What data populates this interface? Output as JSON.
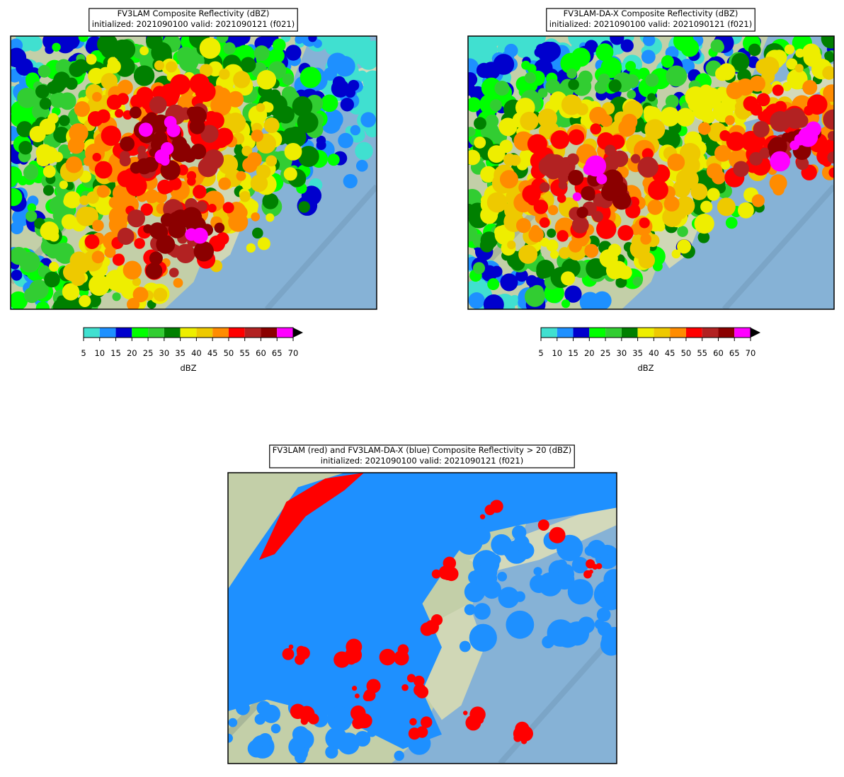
{
  "panels": [
    {
      "title": "FV3LAM Composite Reflectivity (dBZ)",
      "subtitle": "initialized: 2021090100 valid: 2021090121 (f021)",
      "colorbar": {
        "label": "dBZ",
        "ticks": [
          5,
          10,
          15,
          20,
          25,
          30,
          35,
          40,
          45,
          50,
          55,
          60,
          65,
          70
        ],
        "colors": [
          "#40e0d0",
          "#1e90ff",
          "#0000cd",
          "#00ff00",
          "#32cd32",
          "#008000",
          "#eeee00",
          "#eec900",
          "#ff8c00",
          "#ff0000",
          "#b22222",
          "#8b0000",
          "#ff00ff"
        ],
        "extend_color": "#000000"
      }
    },
    {
      "title": "FV3LAM-DA-X Composite Reflectivity (dBZ)",
      "subtitle": "initialized: 2021090100 valid: 2021090121 (f021)",
      "colorbar": {
        "label": "dBZ",
        "ticks": [
          5,
          10,
          15,
          20,
          25,
          30,
          35,
          40,
          45,
          50,
          55,
          60,
          65,
          70
        ],
        "colors": [
          "#40e0d0",
          "#1e90ff",
          "#0000cd",
          "#00ff00",
          "#32cd32",
          "#008000",
          "#eeee00",
          "#eec900",
          "#ff8c00",
          "#ff0000",
          "#b22222",
          "#8b0000",
          "#ff00ff"
        ],
        "extend_color": "#000000"
      }
    },
    {
      "title": "FV3LAM (red) and FV3LAM-DA-X (blue) Composite Reflectivity > 20 (dBZ)",
      "subtitle": "initialized: 2021090100 valid: 2021090121 (f021)",
      "colors": [
        "#ff0000",
        "#1e90ff"
      ]
    }
  ]
}
